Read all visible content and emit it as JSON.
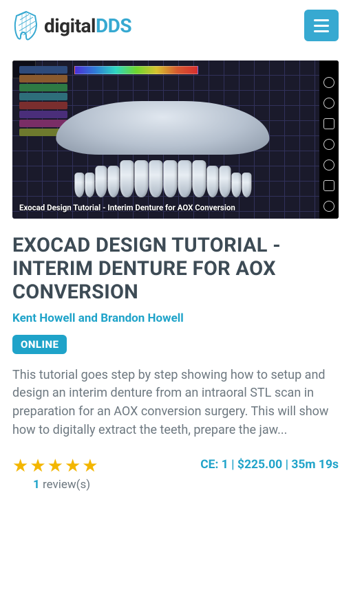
{
  "brand": {
    "part1": "digital",
    "part2": "DDS"
  },
  "hero": {
    "caption": "Exocad Design Tutorial - Interim Denture for AOX Conversion",
    "palette_colors": [
      "#2e4a7a",
      "#8a5a2e",
      "#2e7a44",
      "#2e6e7a",
      "#7a2e2e",
      "#4a2e7a",
      "#7a2e66",
      "#6e7a2e"
    ],
    "tool_count": 7,
    "corner_label": ""
  },
  "title": "EXOCAD DESIGN TUTORIAL - INTERIM DENTURE FOR AOX CONVERSION",
  "authors": "Kent Howell and Brandon Howell",
  "badge": "ONLINE",
  "description": "This tutorial goes step by step showing how to setup and design an interim denture from an intraoral STL scan in preparation for an AOX conversion surgery. This will show how to digitally extract the teeth, prepare the jaw...",
  "rating": {
    "stars": 5,
    "count": "1",
    "label": "review(s)"
  },
  "pricing": {
    "ce_label": "CE:",
    "ce": "1",
    "price": "$225.00",
    "duration": "35m 19s",
    "sep": " | "
  },
  "colors": {
    "accent": "#1fa3c9",
    "menu_bg": "#37a9d1",
    "title": "#3d4b55",
    "body": "#6d7880",
    "star": "#f3b600"
  }
}
